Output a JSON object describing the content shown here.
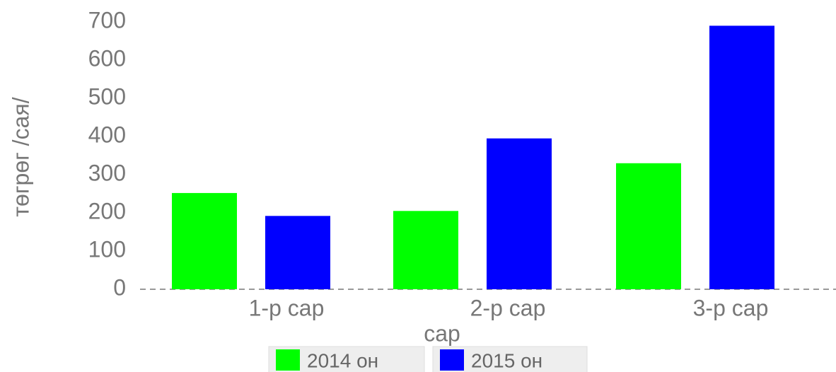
{
  "chart_data": {
    "type": "bar",
    "categories": [
      "1-р сар",
      "2-р сар",
      "3-р сар"
    ],
    "series": [
      {
        "name": "2014 он",
        "color": "#00ff00",
        "values": [
          252,
          205,
          330
        ]
      },
      {
        "name": "2015 он",
        "color": "#0000ff",
        "values": [
          192,
          395,
          690
        ]
      }
    ],
    "x_label": "сар",
    "y_label": "төгрөг /сая/",
    "ylim": [
      0,
      700
    ],
    "yticks": [
      0,
      100,
      200,
      300,
      400,
      500,
      600,
      700
    ],
    "legend": "bottom"
  }
}
